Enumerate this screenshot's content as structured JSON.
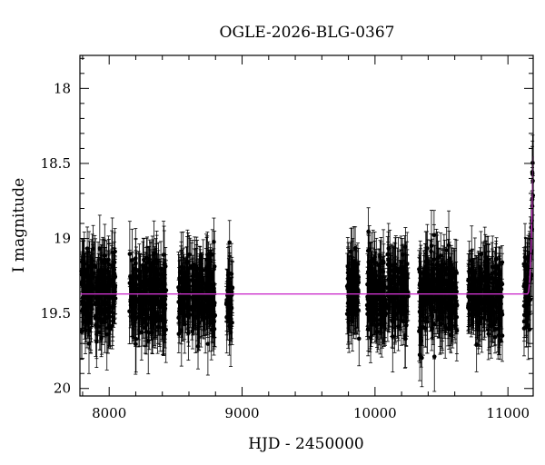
{
  "chart_data": {
    "type": "scatter",
    "title": "OGLE-2026-BLG-0367",
    "xlabel": "HJD - 2450000",
    "ylabel": "I magnitude",
    "xlim": [
      7780,
      11190
    ],
    "ylim": [
      20.05,
      17.78
    ],
    "y_inverted": true,
    "x_ticks": [
      8000,
      9000,
      10000,
      11000
    ],
    "y_ticks": [
      18,
      18.5,
      19,
      19.5,
      20
    ],
    "x_tick_labels": [
      "8000",
      "9000",
      "10000",
      "11000"
    ],
    "y_tick_labels": [
      "18",
      "18.5",
      "19",
      "19.5",
      "20"
    ],
    "baseline_mag": 19.37,
    "observing_seasons": [
      {
        "start": 7790,
        "end": 8050
      },
      {
        "start": 8150,
        "end": 8430
      },
      {
        "start": 8520,
        "end": 8800
      },
      {
        "start": 8880,
        "end": 8930
      },
      {
        "start": 9790,
        "end": 9880
      },
      {
        "start": 9940,
        "end": 10250
      },
      {
        "start": 10330,
        "end": 10620
      },
      {
        "start": 10700,
        "end": 10960
      },
      {
        "start": 11120,
        "end": 11190
      }
    ],
    "season_scatter_mag": 0.25,
    "typical_error_mag": 0.17,
    "rise": {
      "start": 11150,
      "peak_mag": 18.18,
      "peak_time": 11195
    },
    "series": [
      {
        "color": "#000000",
        "marker": "circle-with-errorbars"
      },
      {
        "color": "#cc33cc",
        "marker": "line"
      }
    ],
    "grid": false,
    "legend": "none"
  }
}
